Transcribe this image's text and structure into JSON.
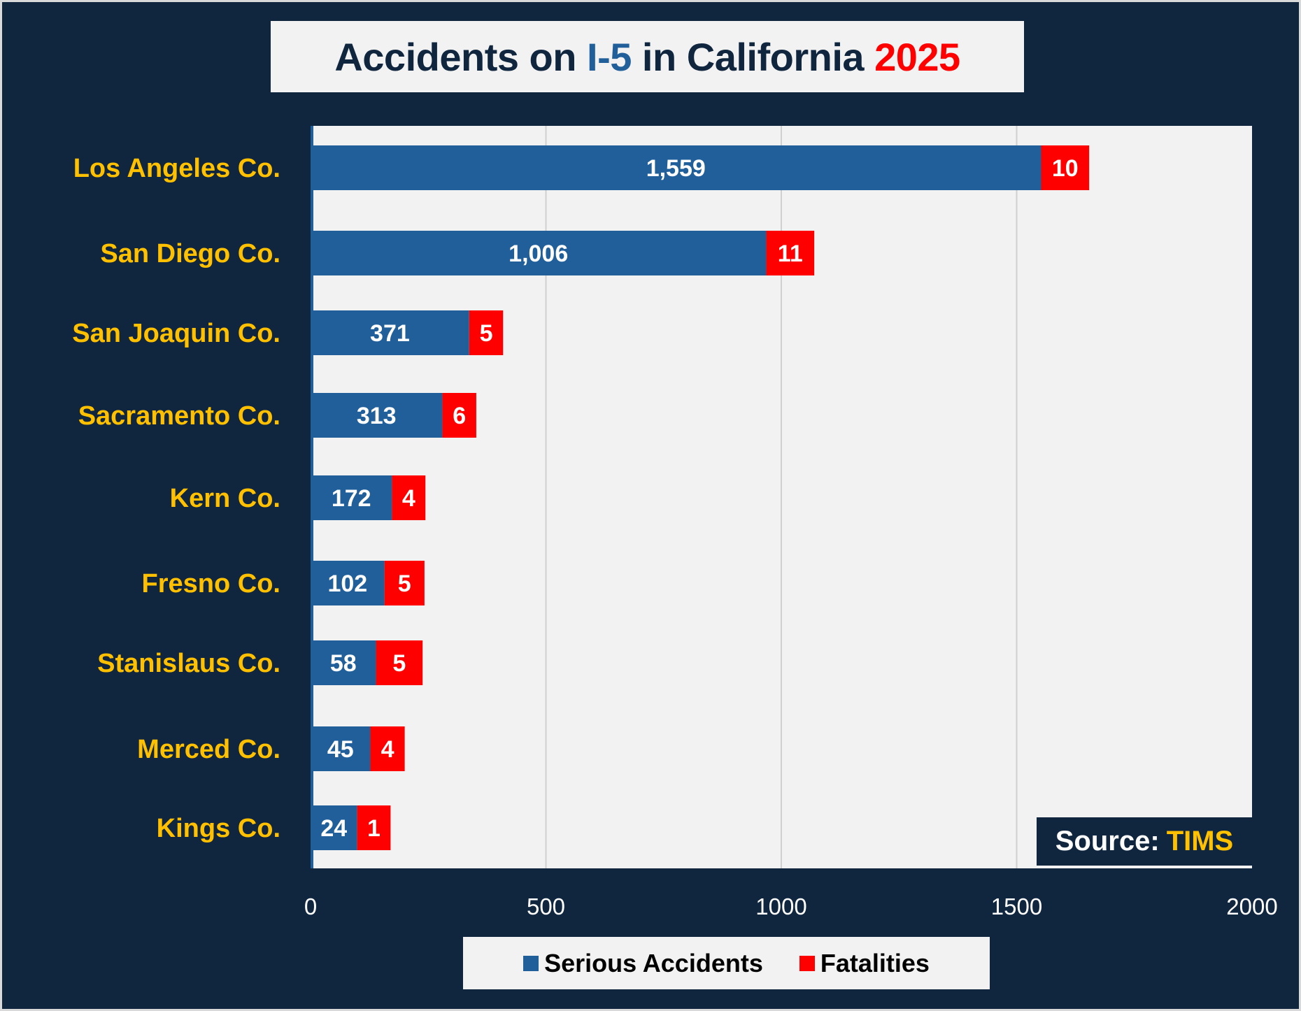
{
  "chart_data": {
    "type": "bar",
    "orientation": "horizontal",
    "stacked": true,
    "title": {
      "part1": "Accidents on ",
      "highlight": "I-5",
      "part2": " in California ",
      "year": "2025"
    },
    "categories": [
      "Los Angeles Co.",
      "San Diego Co.",
      "San Joaquin Co.",
      "Sacramento Co.",
      "Kern Co.",
      "Fresno Co.",
      "Stanislaus Co.",
      "Merced Co.",
      "Kings Co."
    ],
    "series": [
      {
        "name": "Serious Accidents",
        "color": "#205f99",
        "values": [
          1559,
          1006,
          371,
          313,
          172,
          102,
          58,
          45,
          24
        ],
        "labels": [
          "1,559",
          "1,006",
          "371",
          "313",
          "172",
          "102",
          "58",
          "45",
          "24"
        ]
      },
      {
        "name": "Fatalities",
        "color": "#ff0000",
        "values": [
          10,
          11,
          5,
          6,
          4,
          5,
          5,
          4,
          1
        ],
        "labels": [
          "10",
          "11",
          "5",
          "6",
          "4",
          "5",
          "5",
          "4",
          "1"
        ]
      }
    ],
    "xlim": [
      0,
      2000
    ],
    "xticks": [
      "0",
      "500",
      "1000",
      "1500",
      "2000"
    ],
    "grid": true,
    "legend": "bottom",
    "source": {
      "label": "Source:",
      "name": "TIMS"
    },
    "colors": {
      "background": "#10263f",
      "plot": "#f2f2f2",
      "category_text": "#ffc000"
    }
  }
}
